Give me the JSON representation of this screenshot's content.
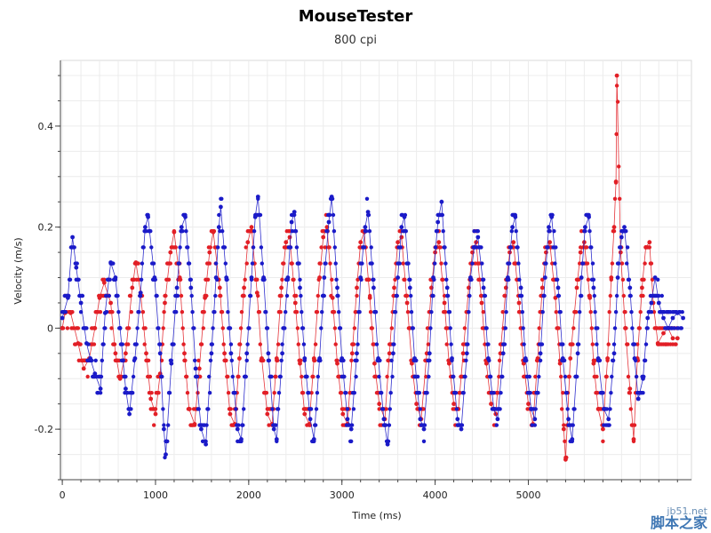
{
  "colors": {
    "series_red": "#e21f26",
    "series_blue": "#1a1ac8",
    "grid": "#ececec",
    "axis": "#444444",
    "watermark": "#3f77b4"
  },
  "chart_data": {
    "type": "scatter",
    "title": "MouseTester",
    "subtitle": "800 cpi",
    "xlabel": "Time (ms)",
    "ylabel": "Velocity (m/s)",
    "xlim": [
      -20,
      6750
    ],
    "ylim": [
      -0.3,
      0.53
    ],
    "x_ticks": [
      0,
      1000,
      2000,
      3000,
      4000,
      5000
    ],
    "y_ticks": [
      -0.2,
      0,
      0.2,
      0.4
    ],
    "y_tick_labels": [
      "-0.2",
      "0",
      "0.2",
      "0.4"
    ],
    "grid": true,
    "legend": "none",
    "series": [
      {
        "color": "red",
        "approx_period_ms": 380,
        "approx_amplitude": 0.17,
        "points": [
          [
            0,
            0.0
          ],
          [
            30,
            0.03
          ],
          [
            90,
            0.03
          ],
          [
            170,
            -0.03
          ],
          [
            230,
            -0.08
          ],
          [
            290,
            -0.06
          ],
          [
            350,
            0.0
          ],
          [
            400,
            0.06
          ],
          [
            450,
            0.09
          ],
          [
            520,
            0.05
          ],
          [
            570,
            -0.05
          ],
          [
            620,
            -0.1
          ],
          [
            680,
            -0.05
          ],
          [
            750,
            0.08
          ],
          [
            790,
            0.13
          ],
          [
            840,
            0.07
          ],
          [
            900,
            -0.05
          ],
          [
            950,
            -0.14
          ],
          [
            1000,
            -0.17
          ],
          [
            1050,
            -0.09
          ],
          [
            1100,
            0.05
          ],
          [
            1160,
            0.15
          ],
          [
            1200,
            0.19
          ],
          [
            1260,
            0.1
          ],
          [
            1310,
            -0.05
          ],
          [
            1360,
            -0.16
          ],
          [
            1420,
            -0.19
          ],
          [
            1470,
            -0.08
          ],
          [
            1530,
            0.06
          ],
          [
            1580,
            0.15
          ],
          [
            1620,
            0.19
          ],
          [
            1690,
            0.08
          ],
          [
            1740,
            -0.05
          ],
          [
            1800,
            -0.17
          ],
          [
            1850,
            -0.19
          ],
          [
            1900,
            -0.06
          ],
          [
            1950,
            0.08
          ],
          [
            1990,
            0.17
          ],
          [
            2030,
            0.2
          ],
          [
            2090,
            0.07
          ],
          [
            2140,
            -0.06
          ],
          [
            2200,
            -0.17
          ],
          [
            2250,
            -0.19
          ],
          [
            2300,
            -0.06
          ],
          [
            2350,
            0.08
          ],
          [
            2400,
            0.17
          ],
          [
            2440,
            0.18
          ],
          [
            2500,
            0.05
          ],
          [
            2550,
            -0.07
          ],
          [
            2600,
            -0.17
          ],
          [
            2650,
            -0.19
          ],
          [
            2700,
            -0.06
          ],
          [
            2760,
            0.1
          ],
          [
            2800,
            0.18
          ],
          [
            2840,
            0.2
          ],
          [
            2900,
            0.06
          ],
          [
            2950,
            -0.07
          ],
          [
            3010,
            -0.17
          ],
          [
            3060,
            -0.19
          ],
          [
            3110,
            -0.05
          ],
          [
            3160,
            0.08
          ],
          [
            3200,
            0.17
          ],
          [
            3240,
            0.19
          ],
          [
            3300,
            0.06
          ],
          [
            3350,
            -0.07
          ],
          [
            3400,
            -0.15
          ],
          [
            3460,
            -0.18
          ],
          [
            3510,
            -0.05
          ],
          [
            3560,
            0.08
          ],
          [
            3600,
            0.17
          ],
          [
            3640,
            0.18
          ],
          [
            3700,
            0.05
          ],
          [
            3750,
            -0.07
          ],
          [
            3800,
            -0.15
          ],
          [
            3850,
            -0.18
          ],
          [
            3910,
            -0.05
          ],
          [
            3960,
            0.08
          ],
          [
            4000,
            0.15
          ],
          [
            4040,
            0.17
          ],
          [
            4100,
            0.05
          ],
          [
            4150,
            -0.07
          ],
          [
            4200,
            -0.15
          ],
          [
            4250,
            -0.16
          ],
          [
            4300,
            -0.05
          ],
          [
            4360,
            0.08
          ],
          [
            4400,
            0.15
          ],
          [
            4440,
            0.17
          ],
          [
            4500,
            0.05
          ],
          [
            4550,
            -0.07
          ],
          [
            4600,
            -0.15
          ],
          [
            4650,
            -0.17
          ],
          [
            4700,
            -0.05
          ],
          [
            4760,
            0.08
          ],
          [
            4800,
            0.15
          ],
          [
            4840,
            0.17
          ],
          [
            4900,
            0.05
          ],
          [
            4950,
            -0.07
          ],
          [
            5000,
            -0.15
          ],
          [
            5050,
            -0.19
          ],
          [
            5100,
            -0.06
          ],
          [
            5150,
            0.08
          ],
          [
            5190,
            0.15
          ],
          [
            5230,
            0.17
          ],
          [
            5290,
            0.06
          ],
          [
            5340,
            -0.07
          ],
          [
            5380,
            -0.2
          ],
          [
            5400,
            -0.26
          ],
          [
            5450,
            -0.06
          ],
          [
            5520,
            0.08
          ],
          [
            5560,
            0.15
          ],
          [
            5600,
            0.17
          ],
          [
            5660,
            0.06
          ],
          [
            5700,
            -0.07
          ],
          [
            5750,
            -0.16
          ],
          [
            5800,
            -0.2
          ],
          [
            5850,
            -0.06
          ],
          [
            5890,
            0.1
          ],
          [
            5920,
            0.2
          ],
          [
            5940,
            0.29
          ],
          [
            5950,
            0.5
          ],
          [
            5990,
            0.15
          ],
          [
            6040,
            0.0
          ],
          [
            6090,
            -0.12
          ],
          [
            6130,
            -0.22
          ],
          [
            6170,
            -0.06
          ],
          [
            6220,
            0.08
          ],
          [
            6260,
            0.16
          ],
          [
            6300,
            0.17
          ],
          [
            6340,
            0.05
          ],
          [
            6390,
            -0.03
          ],
          [
            6450,
            -0.01
          ],
          [
            6500,
            0.0
          ],
          [
            6550,
            -0.02
          ],
          [
            6600,
            -0.02
          ]
        ]
      },
      {
        "color": "blue",
        "approx_period_ms": 380,
        "approx_amplitude": 0.2,
        "points": [
          [
            0,
            0.02
          ],
          [
            60,
            0.06
          ],
          [
            110,
            0.18
          ],
          [
            150,
            0.12
          ],
          [
            200,
            0.05
          ],
          [
            260,
            -0.03
          ],
          [
            300,
            -0.06
          ],
          [
            350,
            -0.09
          ],
          [
            410,
            -0.12
          ],
          [
            460,
            0.03
          ],
          [
            520,
            0.13
          ],
          [
            570,
            0.1
          ],
          [
            620,
            0.0
          ],
          [
            680,
            -0.12
          ],
          [
            720,
            -0.17
          ],
          [
            780,
            -0.06
          ],
          [
            840,
            0.07
          ],
          [
            890,
            0.2
          ],
          [
            920,
            0.22
          ],
          [
            990,
            0.1
          ],
          [
            1050,
            -0.05
          ],
          [
            1090,
            -0.2
          ],
          [
            1110,
            -0.25
          ],
          [
            1170,
            -0.07
          ],
          [
            1230,
            0.08
          ],
          [
            1280,
            0.2
          ],
          [
            1320,
            0.22
          ],
          [
            1380,
            0.08
          ],
          [
            1430,
            -0.08
          ],
          [
            1490,
            -0.2
          ],
          [
            1540,
            -0.23
          ],
          [
            1600,
            -0.05
          ],
          [
            1650,
            0.1
          ],
          [
            1680,
            0.2
          ],
          [
            1700,
            0.24
          ],
          [
            1760,
            0.1
          ],
          [
            1810,
            -0.05
          ],
          [
            1880,
            -0.2
          ],
          [
            1920,
            -0.22
          ],
          [
            1980,
            -0.05
          ],
          [
            2030,
            0.1
          ],
          [
            2070,
            0.22
          ],
          [
            2100,
            0.26
          ],
          [
            2160,
            0.1
          ],
          [
            2210,
            -0.05
          ],
          [
            2270,
            -0.2
          ],
          [
            2300,
            -0.22
          ],
          [
            2360,
            -0.05
          ],
          [
            2420,
            0.1
          ],
          [
            2460,
            0.21
          ],
          [
            2490,
            0.23
          ],
          [
            2550,
            0.08
          ],
          [
            2600,
            -0.06
          ],
          [
            2660,
            -0.18
          ],
          [
            2700,
            -0.22
          ],
          [
            2760,
            -0.06
          ],
          [
            2810,
            0.1
          ],
          [
            2860,
            0.21
          ],
          [
            2890,
            0.26
          ],
          [
            2950,
            0.08
          ],
          [
            3000,
            -0.06
          ],
          [
            3060,
            -0.18
          ],
          [
            3100,
            -0.2
          ],
          [
            3160,
            -0.05
          ],
          [
            3200,
            0.1
          ],
          [
            3250,
            0.2
          ],
          [
            3280,
            0.23
          ],
          [
            3340,
            0.08
          ],
          [
            3390,
            -0.06
          ],
          [
            3450,
            -0.18
          ],
          [
            3490,
            -0.23
          ],
          [
            3550,
            -0.05
          ],
          [
            3600,
            0.1
          ],
          [
            3640,
            0.2
          ],
          [
            3670,
            0.22
          ],
          [
            3730,
            0.08
          ],
          [
            3780,
            -0.06
          ],
          [
            3840,
            -0.18
          ],
          [
            3880,
            -0.2
          ],
          [
            3940,
            -0.05
          ],
          [
            3980,
            0.1
          ],
          [
            4030,
            0.21
          ],
          [
            4070,
            0.25
          ],
          [
            4130,
            0.08
          ],
          [
            4180,
            -0.06
          ],
          [
            4240,
            -0.18
          ],
          [
            4280,
            -0.2
          ],
          [
            4340,
            -0.05
          ],
          [
            4380,
            0.1
          ],
          [
            4420,
            0.16
          ],
          [
            4460,
            0.18
          ],
          [
            4520,
            0.08
          ],
          [
            4570,
            -0.06
          ],
          [
            4630,
            -0.16
          ],
          [
            4670,
            -0.18
          ],
          [
            4730,
            -0.05
          ],
          [
            4780,
            0.1
          ],
          [
            4830,
            0.2
          ],
          [
            4860,
            0.22
          ],
          [
            4920,
            0.08
          ],
          [
            4970,
            -0.06
          ],
          [
            5030,
            -0.16
          ],
          [
            5070,
            -0.18
          ],
          [
            5130,
            -0.05
          ],
          [
            5180,
            0.1
          ],
          [
            5220,
            0.2
          ],
          [
            5250,
            0.22
          ],
          [
            5320,
            0.08
          ],
          [
            5370,
            -0.06
          ],
          [
            5430,
            -0.18
          ],
          [
            5470,
            -0.22
          ],
          [
            5530,
            -0.05
          ],
          [
            5570,
            0.1
          ],
          [
            5610,
            0.2
          ],
          [
            5650,
            0.22
          ],
          [
            5700,
            0.08
          ],
          [
            5750,
            -0.06
          ],
          [
            5810,
            -0.16
          ],
          [
            5860,
            -0.18
          ],
          [
            5920,
            -0.05
          ],
          [
            5960,
            0.1
          ],
          [
            6000,
            0.18
          ],
          [
            6030,
            0.2
          ],
          [
            6090,
            0.08
          ],
          [
            6140,
            -0.06
          ],
          [
            6180,
            -0.14
          ],
          [
            6230,
            -0.1
          ],
          [
            6280,
            0.02
          ],
          [
            6320,
            0.05
          ],
          [
            6360,
            0.1
          ],
          [
            6400,
            0.05
          ],
          [
            6450,
            0.02
          ],
          [
            6500,
            0.0
          ],
          [
            6550,
            0.02
          ],
          [
            6600,
            0.03
          ],
          [
            6660,
            0.02
          ]
        ]
      }
    ]
  },
  "watermark": {
    "top": "jb51.net",
    "bottom": "脚本之家"
  }
}
